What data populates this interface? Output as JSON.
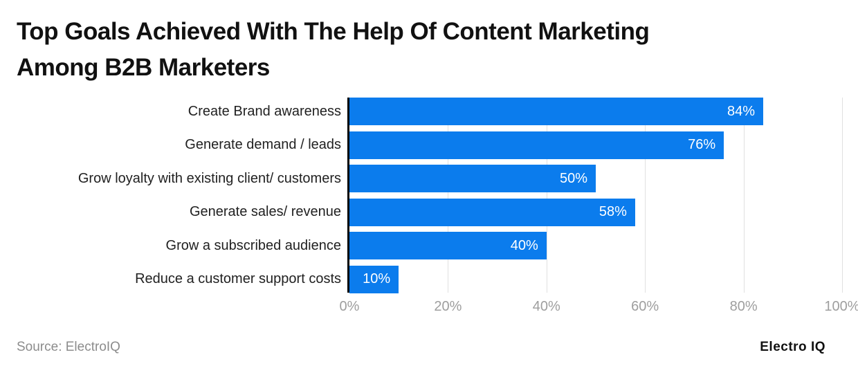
{
  "title": {
    "line1": "Top Goals Achieved With The Help Of Content Marketing",
    "line2": "Among B2B Marketers"
  },
  "footer": {
    "source": "Source: ElectroIQ",
    "brand": "Electro IQ"
  },
  "colors": {
    "bar": "#0b7ced",
    "grid": "#e0e0e0",
    "axis": "#000000",
    "tick_label": "#9e9e9e",
    "category_label": "#212121",
    "value_label": "#ffffff",
    "source_label": "#8c8c8c"
  },
  "chart_data": {
    "type": "bar",
    "orientation": "horizontal",
    "title": "Top Goals Achieved With The Help Of Content Marketing Among B2B Marketers",
    "categories": [
      "Create Brand awareness",
      "Generate demand / leads",
      "Grow loyalty with existing client/ customers",
      "Generate sales/ revenue",
      "Grow a subscribed audience",
      "Reduce a customer support costs"
    ],
    "values": [
      84,
      76,
      50,
      58,
      40,
      10
    ],
    "value_labels": [
      "84%",
      "76%",
      "50%",
      "58%",
      "40%",
      "10%"
    ],
    "x_ticks": [
      "0%",
      "20%",
      "40%",
      "60%",
      "80%",
      "100%"
    ],
    "xlim": [
      0,
      100
    ],
    "xlabel": "",
    "ylabel": "",
    "grid": "vertical",
    "legend": "none"
  }
}
